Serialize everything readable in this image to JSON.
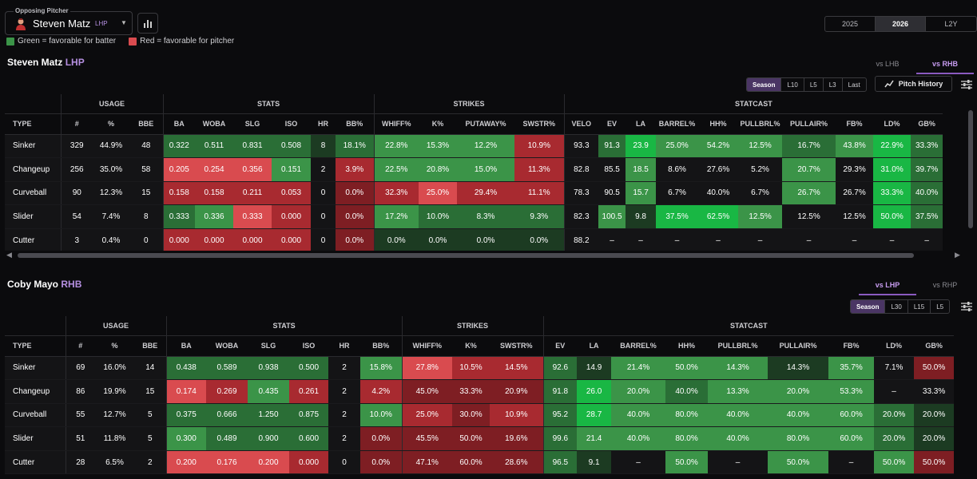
{
  "header": {
    "pitcher_label": "Opposing Pitcher",
    "pitcher_name": "Steven Matz",
    "pitcher_hand": "LHP",
    "legend_green": "Green = favorable for batter",
    "legend_red": "Red = favorable for pitcher",
    "years": [
      "2025",
      "2026",
      "L2Y"
    ],
    "active_year": "2026"
  },
  "colors": {
    "neutral": "#141416",
    "green1": "#1c3b22",
    "green2": "#2a6e36",
    "green3": "#3b9448",
    "green4": "#19b744",
    "red1": "#3a1a1c",
    "red2": "#7e1e23",
    "red3": "#a82a30",
    "red4": "#d94b4f",
    "accent": "#b58fe0"
  },
  "sections": [
    {
      "title": "Steven Matz",
      "hand": "LHP",
      "splits": [
        "vs LHB",
        "vs RHB"
      ],
      "active_split": "vs RHB",
      "ranges": [
        "Season",
        "L10",
        "L5",
        "L3",
        "Last"
      ],
      "pitch_history_label": "Pitch History",
      "groups": [
        {
          "label": "",
          "span": 1
        },
        {
          "label": "USAGE",
          "span": 3
        },
        {
          "label": "STATS",
          "span": 6
        },
        {
          "label": "STRIKES",
          "span": 4
        },
        {
          "label": "STATCAST",
          "span": 10
        }
      ],
      "columns": [
        "TYPE",
        "#",
        "%",
        "BBE",
        "BA",
        "WOBA",
        "SLG",
        "ISO",
        "HR",
        "BB%",
        "WHIFF%",
        "K%",
        "PUTAWAY%",
        "SWSTR%",
        "VELO",
        "EV",
        "LA",
        "BARREL%",
        "HH%",
        "PULLBRL%",
        "PULLAIR%",
        "FB%",
        "LD%",
        "GB%"
      ],
      "rows": [
        [
          "Sinker",
          "329",
          "44.9%",
          "48",
          "0.322",
          "0.511",
          "0.831",
          "0.508",
          "8",
          "18.1%",
          "22.8%",
          "15.3%",
          "12.2%",
          "10.9%",
          "93.3",
          "91.3",
          "23.9",
          "25.0%",
          "54.2%",
          "12.5%",
          "16.7%",
          "43.8%",
          "22.9%",
          "33.3%"
        ],
        [
          "Changeup",
          "256",
          "35.0%",
          "58",
          "0.205",
          "0.254",
          "0.356",
          "0.151",
          "2",
          "3.9%",
          "22.5%",
          "20.8%",
          "15.0%",
          "11.3%",
          "82.8",
          "85.5",
          "18.5",
          "8.6%",
          "27.6%",
          "5.2%",
          "20.7%",
          "29.3%",
          "31.0%",
          "39.7%"
        ],
        [
          "Curveball",
          "90",
          "12.3%",
          "15",
          "0.158",
          "0.158",
          "0.211",
          "0.053",
          "0",
          "0.0%",
          "32.3%",
          "25.0%",
          "29.4%",
          "11.1%",
          "78.3",
          "90.5",
          "15.7",
          "6.7%",
          "40.0%",
          "6.7%",
          "26.7%",
          "26.7%",
          "33.3%",
          "40.0%"
        ],
        [
          "Slider",
          "54",
          "7.4%",
          "8",
          "0.333",
          "0.336",
          "0.333",
          "0.000",
          "0",
          "0.0%",
          "17.2%",
          "10.0%",
          "8.3%",
          "9.3%",
          "82.3",
          "100.5",
          "9.8",
          "37.5%",
          "62.5%",
          "12.5%",
          "12.5%",
          "12.5%",
          "50.0%",
          "37.5%"
        ],
        [
          "Cutter",
          "3",
          "0.4%",
          "0",
          "0.000",
          "0.000",
          "0.000",
          "0.000",
          "0",
          "0.0%",
          "0.0%",
          "0.0%",
          "0.0%",
          "0.0%",
          "88.2",
          "–",
          "–",
          "–",
          "–",
          "–",
          "–",
          "–",
          "–",
          "–"
        ]
      ],
      "shades": [
        [
          "n",
          "n",
          "n",
          "n",
          "g2",
          "g2",
          "g2",
          "g2",
          "g1",
          "g2",
          "g3",
          "g3",
          "g3",
          "r3",
          "n",
          "g2",
          "g4",
          "g3",
          "g3",
          "g3",
          "g2",
          "g3",
          "g4",
          "g2"
        ],
        [
          "n",
          "n",
          "n",
          "n",
          "r4",
          "r4",
          "r4",
          "g3",
          "n",
          "r3",
          "g3",
          "g3",
          "g3",
          "r3",
          "n",
          "n",
          "g3",
          "n",
          "n",
          "n",
          "g3",
          "n",
          "g4",
          "g2"
        ],
        [
          "n",
          "n",
          "n",
          "n",
          "r3",
          "r3",
          "r3",
          "r3",
          "n",
          "r2",
          "r3",
          "r4",
          "r3",
          "r3",
          "n",
          "n",
          "g3",
          "n",
          "n",
          "n",
          "g3",
          "n",
          "g4",
          "g2"
        ],
        [
          "n",
          "n",
          "n",
          "n",
          "g2",
          "g3",
          "r4",
          "r3",
          "n",
          "r2",
          "g3",
          "g2",
          "g2",
          "g2",
          "n",
          "g3",
          "g1",
          "g4",
          "g4",
          "g3",
          "n",
          "n",
          "g4",
          "g2"
        ],
        [
          "n",
          "n",
          "n",
          "n",
          "r3",
          "r3",
          "r3",
          "r3",
          "n",
          "r2",
          "g1",
          "g1",
          "g1",
          "g1",
          "n",
          "n",
          "n",
          "n",
          "n",
          "n",
          "n",
          "n",
          "n",
          "n"
        ]
      ]
    },
    {
      "title": "Coby Mayo",
      "hand": "RHB",
      "splits": [
        "vs LHP",
        "vs RHP"
      ],
      "active_split": "vs LHP",
      "ranges": [
        "Season",
        "L30",
        "L15",
        "L5"
      ],
      "groups": [
        {
          "label": "",
          "span": 1
        },
        {
          "label": "USAGE",
          "span": 3
        },
        {
          "label": "STATS",
          "span": 6
        },
        {
          "label": "STRIKES",
          "span": 3
        },
        {
          "label": "STATCAST",
          "span": 9
        }
      ],
      "columns": [
        "TYPE",
        "#",
        "%",
        "BBE",
        "BA",
        "WOBA",
        "SLG",
        "ISO",
        "HR",
        "BB%",
        "WHIFF%",
        "K%",
        "SWSTR%",
        "EV",
        "LA",
        "BARREL%",
        "HH%",
        "PULLBRL%",
        "PULLAIR%",
        "FB%",
        "LD%",
        "GB%"
      ],
      "rows": [
        [
          "Sinker",
          "69",
          "16.0%",
          "14",
          "0.438",
          "0.589",
          "0.938",
          "0.500",
          "2",
          "15.8%",
          "27.8%",
          "10.5%",
          "14.5%",
          "92.6",
          "14.9",
          "21.4%",
          "50.0%",
          "14.3%",
          "14.3%",
          "35.7%",
          "7.1%",
          "50.0%"
        ],
        [
          "Changeup",
          "86",
          "19.9%",
          "15",
          "0.174",
          "0.269",
          "0.435",
          "0.261",
          "2",
          "4.2%",
          "45.0%",
          "33.3%",
          "20.9%",
          "91.8",
          "26.0",
          "20.0%",
          "40.0%",
          "13.3%",
          "20.0%",
          "53.3%",
          "–",
          "33.3%"
        ],
        [
          "Curveball",
          "55",
          "12.7%",
          "5",
          "0.375",
          "0.666",
          "1.250",
          "0.875",
          "2",
          "10.0%",
          "25.0%",
          "30.0%",
          "10.9%",
          "95.2",
          "28.7",
          "40.0%",
          "80.0%",
          "40.0%",
          "40.0%",
          "60.0%",
          "20.0%",
          "20.0%"
        ],
        [
          "Slider",
          "51",
          "11.8%",
          "5",
          "0.300",
          "0.489",
          "0.900",
          "0.600",
          "2",
          "0.0%",
          "45.5%",
          "50.0%",
          "19.6%",
          "99.6",
          "21.4",
          "40.0%",
          "80.0%",
          "40.0%",
          "80.0%",
          "60.0%",
          "20.0%",
          "20.0%"
        ],
        [
          "Cutter",
          "28",
          "6.5%",
          "2",
          "0.200",
          "0.176",
          "0.200",
          "0.000",
          "0",
          "0.0%",
          "47.1%",
          "60.0%",
          "28.6%",
          "96.5",
          "9.1",
          "–",
          "50.0%",
          "–",
          "50.0%",
          "–",
          "50.0%",
          "50.0%"
        ]
      ],
      "shades": [
        [
          "n",
          "n",
          "n",
          "n",
          "g2",
          "g2",
          "g2",
          "g2",
          "n",
          "g3",
          "r4",
          "r3",
          "r3",
          "g2",
          "g1",
          "g3",
          "g3",
          "g3",
          "g1",
          "g3",
          "n",
          "r2"
        ],
        [
          "n",
          "n",
          "n",
          "n",
          "r4",
          "r3",
          "g3",
          "r3",
          "n",
          "r3",
          "r2",
          "r2",
          "r2",
          "g2",
          "g4",
          "g3",
          "g2",
          "g3",
          "g3",
          "g3",
          "n",
          "n"
        ],
        [
          "n",
          "n",
          "n",
          "n",
          "g2",
          "g2",
          "g2",
          "g2",
          "n",
          "g3",
          "r3",
          "r2",
          "r3",
          "g2",
          "g4",
          "g3",
          "g3",
          "g3",
          "g3",
          "g3",
          "g2",
          "g1"
        ],
        [
          "n",
          "n",
          "n",
          "n",
          "g3",
          "g2",
          "g2",
          "g2",
          "n",
          "r2",
          "r2",
          "r2",
          "r2",
          "g2",
          "g3",
          "g3",
          "g3",
          "g3",
          "g3",
          "g3",
          "g2",
          "g1"
        ],
        [
          "n",
          "n",
          "n",
          "n",
          "r4",
          "r4",
          "r4",
          "r3",
          "n",
          "r2",
          "r2",
          "r2",
          "r2",
          "g2",
          "g1",
          "n",
          "g3",
          "n",
          "g3",
          "n",
          "g3",
          "r2"
        ]
      ]
    }
  ]
}
